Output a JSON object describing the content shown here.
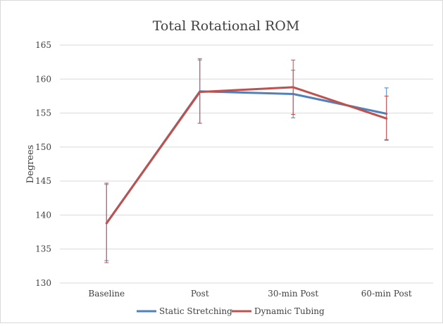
{
  "chart_data": {
    "type": "line",
    "title": "Total Rotational ROM",
    "xlabel": "",
    "ylabel": "Degrees",
    "categories": [
      "Baseline",
      "Post",
      "30-min Post",
      "60-min Post"
    ],
    "ylim": [
      130,
      165
    ],
    "yticks": [
      130,
      135,
      140,
      145,
      150,
      155,
      160,
      165
    ],
    "grid": true,
    "legend_position": "bottom",
    "series": [
      {
        "name": "Static Stretching",
        "color": "#4f81bd",
        "values": [
          138.8,
          158.2,
          157.8,
          154.9
        ],
        "error_low": [
          133.3,
          153.5,
          154.3,
          151.1
        ],
        "error_high": [
          144.5,
          162.8,
          161.3,
          158.7
        ]
      },
      {
        "name": "Dynamic Tubing",
        "color": "#c0504d",
        "values": [
          138.8,
          158.1,
          158.8,
          154.2
        ],
        "error_low": [
          133.0,
          153.5,
          154.8,
          151.0
        ],
        "error_high": [
          144.7,
          163.0,
          162.8,
          157.5
        ]
      }
    ]
  }
}
